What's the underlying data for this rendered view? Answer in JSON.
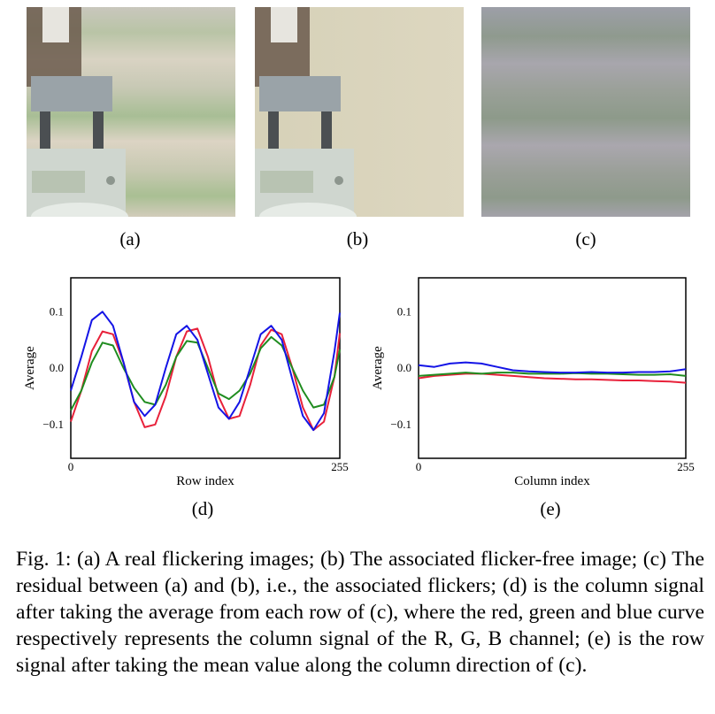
{
  "panels": {
    "a": {
      "label": "(a)"
    },
    "b": {
      "label": "(b)"
    },
    "c": {
      "label": "(c)"
    },
    "d": {
      "label": "(d)"
    },
    "e": {
      "label": "(e)"
    }
  },
  "colors": {
    "red": "#e8213a",
    "green": "#1f8c1f",
    "blue": "#1414e6"
  },
  "chart_data": [
    {
      "type": "line",
      "panel": "(d)",
      "xlabel": "Row index",
      "ylabel": "Average",
      "xlim": [
        0,
        255
      ],
      "ylim": [
        -0.16,
        0.16
      ],
      "xticks": [
        "0",
        "255"
      ],
      "yticks": [
        {
          "value": 0.1,
          "label": "0.1"
        },
        {
          "value": 0.0,
          "label": "0.0"
        },
        {
          "value": -0.1,
          "label": "−0.1"
        }
      ],
      "series": [
        {
          "channel": "R",
          "color": "#e8213a",
          "x": [
            0,
            10,
            20,
            30,
            40,
            50,
            60,
            70,
            80,
            90,
            100,
            110,
            120,
            130,
            140,
            150,
            160,
            170,
            180,
            190,
            200,
            210,
            220,
            230,
            240,
            250,
            255
          ],
          "y": [
            -0.095,
            -0.04,
            0.03,
            0.065,
            0.06,
            0.01,
            -0.06,
            -0.105,
            -0.1,
            -0.05,
            0.02,
            0.065,
            0.07,
            0.02,
            -0.05,
            -0.09,
            -0.085,
            -0.03,
            0.04,
            0.068,
            0.06,
            0.0,
            -0.07,
            -0.11,
            -0.095,
            -0.015,
            0.062
          ]
        },
        {
          "channel": "G",
          "color": "#1f8c1f",
          "x": [
            0,
            10,
            20,
            30,
            40,
            50,
            60,
            70,
            80,
            90,
            100,
            110,
            120,
            130,
            140,
            150,
            160,
            170,
            180,
            190,
            200,
            210,
            220,
            230,
            240,
            250,
            255
          ],
          "y": [
            -0.075,
            -0.04,
            0.01,
            0.045,
            0.04,
            0.0,
            -0.035,
            -0.06,
            -0.065,
            -0.03,
            0.02,
            0.048,
            0.045,
            0.0,
            -0.045,
            -0.055,
            -0.04,
            -0.01,
            0.035,
            0.055,
            0.04,
            0.0,
            -0.04,
            -0.07,
            -0.065,
            -0.015,
            0.033
          ]
        },
        {
          "channel": "B",
          "color": "#1414e6",
          "x": [
            0,
            10,
            20,
            30,
            40,
            50,
            60,
            70,
            80,
            90,
            100,
            110,
            120,
            130,
            140,
            150,
            160,
            170,
            180,
            190,
            200,
            210,
            220,
            230,
            240,
            250,
            255
          ],
          "y": [
            -0.04,
            0.02,
            0.085,
            0.1,
            0.075,
            0.01,
            -0.06,
            -0.085,
            -0.065,
            0.0,
            0.06,
            0.075,
            0.05,
            -0.01,
            -0.07,
            -0.09,
            -0.06,
            0.0,
            0.06,
            0.075,
            0.05,
            -0.02,
            -0.085,
            -0.11,
            -0.08,
            0.03,
            0.098
          ]
        }
      ]
    },
    {
      "type": "line",
      "panel": "(e)",
      "xlabel": "Column index",
      "ylabel": "Average",
      "xlim": [
        0,
        255
      ],
      "ylim": [
        -0.16,
        0.16
      ],
      "xticks": [
        "0",
        "255"
      ],
      "yticks": [
        {
          "value": 0.1,
          "label": "0.1"
        },
        {
          "value": 0.0,
          "label": "0.0"
        },
        {
          "value": -0.1,
          "label": "−0.1"
        }
      ],
      "series": [
        {
          "channel": "R",
          "color": "#e8213a",
          "x": [
            0,
            15,
            30,
            45,
            60,
            75,
            90,
            105,
            120,
            135,
            150,
            165,
            180,
            195,
            210,
            225,
            240,
            255
          ],
          "y": [
            -0.018,
            -0.014,
            -0.012,
            -0.01,
            -0.01,
            -0.012,
            -0.014,
            -0.016,
            -0.018,
            -0.019,
            -0.02,
            -0.02,
            -0.021,
            -0.022,
            -0.022,
            -0.023,
            -0.024,
            -0.026
          ]
        },
        {
          "channel": "G",
          "color": "#1f8c1f",
          "x": [
            0,
            15,
            30,
            45,
            60,
            75,
            90,
            105,
            120,
            135,
            150,
            165,
            180,
            195,
            210,
            225,
            240,
            255
          ],
          "y": [
            -0.014,
            -0.012,
            -0.01,
            -0.008,
            -0.01,
            -0.008,
            -0.008,
            -0.01,
            -0.01,
            -0.01,
            -0.009,
            -0.01,
            -0.01,
            -0.011,
            -0.012,
            -0.012,
            -0.011,
            -0.014
          ]
        },
        {
          "channel": "B",
          "color": "#1414e6",
          "x": [
            0,
            15,
            30,
            45,
            60,
            75,
            90,
            105,
            120,
            135,
            150,
            165,
            180,
            195,
            210,
            225,
            240,
            255
          ],
          "y": [
            0.005,
            0.002,
            0.008,
            0.01,
            0.008,
            0.002,
            -0.004,
            -0.006,
            -0.007,
            -0.008,
            -0.008,
            -0.007,
            -0.008,
            -0.008,
            -0.007,
            -0.007,
            -0.006,
            -0.002
          ]
        }
      ]
    }
  ],
  "caption": "Fig. 1: (a) A real flickering images; (b) The associated flicker-free image; (c) The residual between (a) and (b), i.e., the associated flickers; (d) is the column signal after taking the average from each row of (c), where the red, green and blue curve respectively represents the column signal of the R, G, B channel; (e) is the row signal after taking the mean value along the column direction of (c)."
}
